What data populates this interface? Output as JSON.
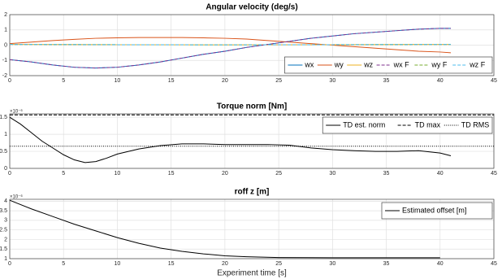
{
  "chart_data": [
    {
      "type": "line",
      "title": "Angular velocity (deg/s)",
      "xlim": [
        0,
        45
      ],
      "xticks": [
        0,
        5,
        10,
        15,
        20,
        25,
        30,
        35,
        40,
        45
      ],
      "ylim": [
        -2,
        2
      ],
      "yticks": [
        -2,
        -1,
        0,
        1,
        2
      ],
      "grid": true,
      "legend": "lower right",
      "series": [
        {
          "name": "wx",
          "color": "#0072bd",
          "linestyle": "solid",
          "x": [
            0,
            2,
            4,
            6,
            8,
            10,
            12,
            14,
            16,
            18,
            20,
            22,
            24,
            26,
            28,
            30,
            32,
            34,
            36,
            38,
            40,
            41
          ],
          "values": [
            -0.95,
            -1.1,
            -1.3,
            -1.45,
            -1.5,
            -1.45,
            -1.3,
            -1.1,
            -0.85,
            -0.6,
            -0.4,
            -0.15,
            0.05,
            0.25,
            0.45,
            0.6,
            0.75,
            0.85,
            0.95,
            1.05,
            1.1,
            1.1
          ]
        },
        {
          "name": "wy",
          "color": "#d95319",
          "linestyle": "solid",
          "x": [
            0,
            2,
            4,
            6,
            8,
            10,
            12,
            14,
            16,
            18,
            20,
            22,
            24,
            26,
            28,
            30,
            32,
            34,
            36,
            38,
            40,
            41
          ],
          "values": [
            0.1,
            0.2,
            0.3,
            0.38,
            0.45,
            0.48,
            0.5,
            0.5,
            0.5,
            0.48,
            0.45,
            0.4,
            0.3,
            0.2,
            0.1,
            0,
            -0.1,
            -0.2,
            -0.3,
            -0.4,
            -0.45,
            -0.5
          ]
        },
        {
          "name": "wz",
          "color": "#edb120",
          "linestyle": "solid",
          "x": [
            0,
            10,
            20,
            30,
            41
          ],
          "values": [
            0.05,
            0.03,
            0.02,
            0.03,
            0.05
          ]
        },
        {
          "name": "wx F",
          "color": "#7e2f8e",
          "linestyle": "dashed",
          "x": [
            0,
            2,
            4,
            6,
            8,
            10,
            12,
            14,
            16,
            18,
            20,
            22,
            24,
            26,
            28,
            30,
            32,
            34,
            36,
            38,
            40,
            41
          ],
          "values": [
            -0.95,
            -1.1,
            -1.3,
            -1.45,
            -1.5,
            -1.45,
            -1.3,
            -1.1,
            -0.85,
            -0.6,
            -0.4,
            -0.15,
            0.05,
            0.25,
            0.45,
            0.6,
            0.75,
            0.85,
            0.95,
            1.05,
            1.1,
            1.1
          ]
        },
        {
          "name": "wy F",
          "color": "#77ac30",
          "linestyle": "dashed",
          "x": [
            0,
            10,
            20,
            30,
            41
          ],
          "values": [
            0.05,
            0.03,
            0.02,
            0.03,
            0.05
          ]
        },
        {
          "name": "wz F",
          "color": "#4dbeee",
          "linestyle": "dashed",
          "x": [
            0,
            10,
            20,
            30,
            41
          ],
          "values": [
            0.05,
            0.03,
            0.02,
            0.03,
            0.05
          ]
        }
      ]
    },
    {
      "type": "line",
      "title": "Torque norm [Nm]",
      "y_exponent": "×10⁻⁶",
      "xlim": [
        0,
        45
      ],
      "xticks": [
        0,
        5,
        10,
        15,
        20,
        25,
        30,
        35,
        40,
        45
      ],
      "ylim": [
        0,
        1.6
      ],
      "yticks": [
        0,
        0.5,
        1,
        1.5
      ],
      "grid": true,
      "legend": "upper right",
      "series": [
        {
          "name": "TD est. norm",
          "color": "#000000",
          "linestyle": "solid",
          "x": [
            0,
            1,
            2,
            3,
            4,
            5,
            6,
            7,
            8,
            9,
            10,
            12,
            14,
            16,
            18,
            20,
            22,
            24,
            26,
            28,
            30,
            32,
            34,
            36,
            38,
            40,
            41
          ],
          "values": [
            1.5,
            1.3,
            1.05,
            0.8,
            0.6,
            0.4,
            0.25,
            0.17,
            0.2,
            0.3,
            0.42,
            0.57,
            0.67,
            0.72,
            0.72,
            0.7,
            0.7,
            0.7,
            0.68,
            0.6,
            0.55,
            0.52,
            0.5,
            0.5,
            0.52,
            0.45,
            0.37
          ]
        },
        {
          "name": "TD max",
          "color": "#000000",
          "linestyle": "dashed",
          "x": [
            0,
            45
          ],
          "values": [
            1.57,
            1.57
          ]
        },
        {
          "name": "TD RMS",
          "color": "#000000",
          "linestyle": "dotted",
          "x": [
            0,
            45
          ],
          "values": [
            0.65,
            0.65
          ]
        }
      ]
    },
    {
      "type": "line",
      "title": "roff z [m]",
      "y_exponent": "×10⁻⁶",
      "x_label": "Experiment time [s]",
      "xlim": [
        0,
        45
      ],
      "xticks": [
        0,
        5,
        10,
        15,
        20,
        25,
        30,
        35,
        40,
        45
      ],
      "ylim": [
        1,
        4.1
      ],
      "yticks": [
        1,
        1.5,
        2,
        2.5,
        3,
        3.5,
        4
      ],
      "grid": true,
      "legend": "upper right",
      "series": [
        {
          "name": "Estimated offset [m]",
          "color": "#000000",
          "linestyle": "solid",
          "x": [
            0,
            2,
            4,
            6,
            8,
            10,
            12,
            14,
            16,
            18,
            20,
            22,
            25,
            30,
            35,
            40
          ],
          "values": [
            4.05,
            3.6,
            3.2,
            2.8,
            2.45,
            2.1,
            1.8,
            1.55,
            1.38,
            1.25,
            1.15,
            1.1,
            1.06,
            1.05,
            1.05,
            1.05
          ]
        }
      ]
    }
  ]
}
